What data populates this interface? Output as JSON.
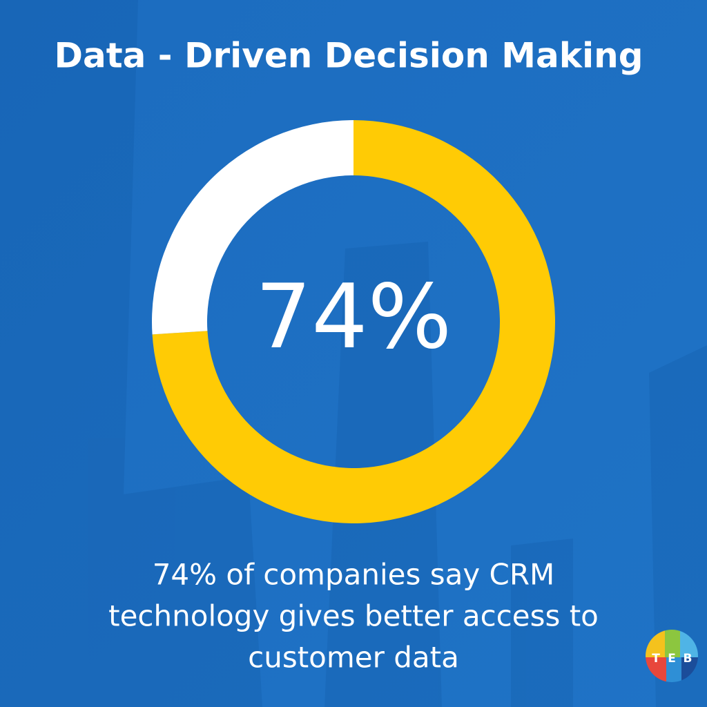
{
  "chart_data": {
    "type": "donut",
    "title": "Data - Driven Decision Making",
    "categories": [
      null,
      null
    ],
    "values": [
      74,
      26
    ],
    "value_labels": [
      "74%",
      null
    ],
    "colors": [
      "#ffcb05",
      "#ffffff"
    ],
    "caption": [
      "74% of companies say CRM",
      "technology gives better access to",
      "customer data"
    ]
  },
  "logo": [
    "T",
    "E",
    "B"
  ]
}
